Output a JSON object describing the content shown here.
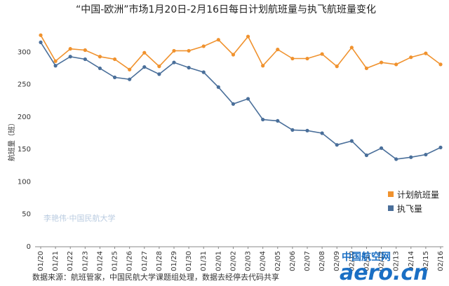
{
  "chart_data": {
    "type": "line",
    "title": "“中国-欧洲”市场1月20日-2月16日每日计划航班量与执飞航班量变化",
    "ylabel": "航班量（班）",
    "xlabel": "",
    "ylim": [
      0,
      350
    ],
    "yticks": [
      0,
      50,
      100,
      150,
      200,
      250,
      300
    ],
    "grid": false,
    "legend_position": "bottom-right",
    "categories": [
      "01/20",
      "01/21",
      "01/22",
      "01/23",
      "01/24",
      "01/25",
      "01/26",
      "01/27",
      "01/28",
      "01/29",
      "01/30",
      "01/31",
      "02/01",
      "02/02",
      "02/03",
      "02/04",
      "02/05",
      "02/06",
      "02/07",
      "02/08",
      "02/09",
      "02/10",
      "02/11",
      "02/12",
      "02/13",
      "02/14",
      "02/15",
      "02/16"
    ],
    "series": [
      {
        "name": "计划航班量",
        "color": "#f0922e",
        "values": [
          326,
          286,
          305,
          303,
          293,
          289,
          273,
          299,
          278,
          302,
          302,
          309,
          319,
          296,
          324,
          279,
          304,
          290,
          290,
          297,
          278,
          307,
          275,
          284,
          281,
          292,
          298,
          281
        ]
      },
      {
        "name": "执飞量",
        "color": "#4a6f9a",
        "values": [
          315,
          279,
          293,
          289,
          275,
          261,
          258,
          277,
          266,
          284,
          276,
          269,
          246,
          220,
          228,
          196,
          194,
          180,
          179,
          175,
          157,
          163,
          141,
          152,
          135,
          138,
          142,
          153
        ]
      }
    ]
  },
  "watermark": "李艳伟·中国民航大学",
  "source": "数据来源：航班管家，中国民航大学课题组处理，数据去经停去代码共享",
  "logo": {
    "top": "中国航空网",
    "bottom": "aero.cn"
  }
}
